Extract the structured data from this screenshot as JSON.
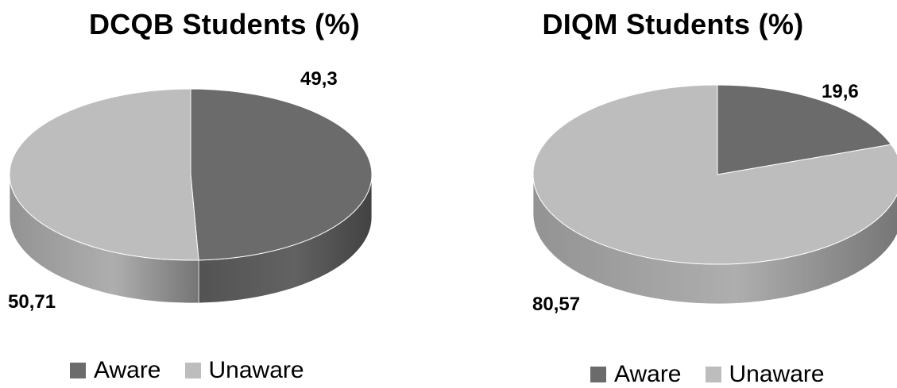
{
  "chart_data": [
    {
      "type": "pie",
      "title": "DCQB Students (%)",
      "categories": [
        "Aware",
        "Unaware"
      ],
      "values": [
        49.3,
        50.71
      ],
      "data_labels": [
        "49,3",
        "50,71"
      ],
      "colors": [
        "#6b6b6b",
        "#bdbdbd"
      ],
      "legend": "bottom"
    },
    {
      "type": "pie",
      "title": "DIQM Students (%)",
      "categories": [
        "Aware",
        "Unaware"
      ],
      "values": [
        19.6,
        80.57
      ],
      "data_labels": [
        "19,6",
        "80,57"
      ],
      "colors": [
        "#6b6b6b",
        "#bdbdbd"
      ],
      "legend": "bottom"
    }
  ]
}
